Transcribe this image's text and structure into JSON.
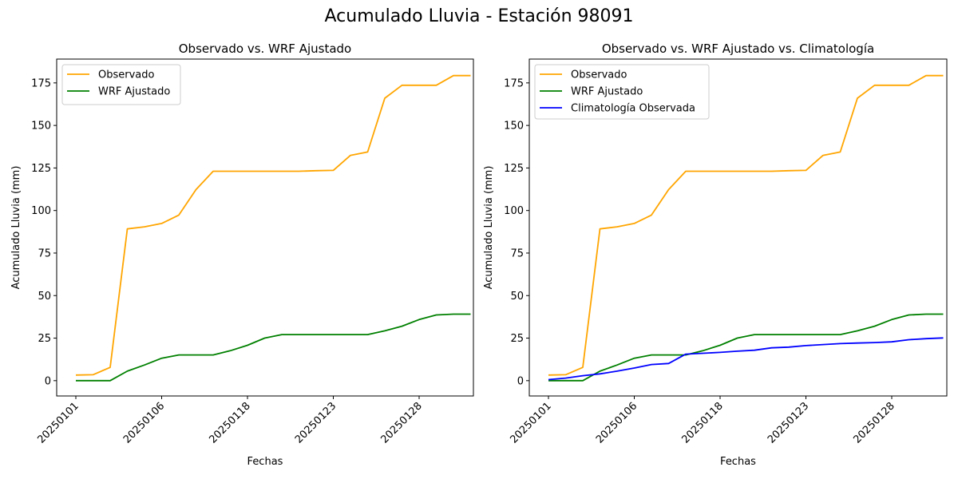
{
  "figure": {
    "title": "Acumulado Lluvia - Estación 98091"
  },
  "colors": {
    "observado": "#FFA500",
    "wrf": "#008000",
    "climatologia": "#0000FF",
    "axes": "#000000"
  },
  "chart_data": [
    {
      "type": "line",
      "title": "Observado vs. WRF Ajustado",
      "xlabel": "Fechas",
      "ylabel": "Acumulado Lluvia (mm)",
      "ylim": [
        -9,
        189
      ],
      "yticks": [
        0,
        25,
        50,
        75,
        100,
        125,
        150,
        175
      ],
      "x_tick_labels": [
        "20250101",
        "20250106",
        "20250118",
        "20250123",
        "20250128"
      ],
      "grid": false,
      "legend_position": "top-left",
      "series": [
        {
          "name": "Observado",
          "color": "#FFA500",
          "values": [
            3.3,
            3.5,
            7.8,
            89.2,
            90.4,
            92.4,
            97.3,
            112.3,
            123.1,
            123.1,
            123.1,
            123.1,
            123.1,
            123.1,
            123.4,
            123.6,
            132.4,
            134.4,
            166.0,
            173.6,
            173.6,
            173.6,
            179.3,
            179.3
          ]
        },
        {
          "name": "WRF Ajustado",
          "color": "#008000",
          "values": [
            0,
            0,
            0,
            5.6,
            9.2,
            13.2,
            15.1,
            15.1,
            15.1,
            17.6,
            20.8,
            25.0,
            27.1,
            27.1,
            27.1,
            27.1,
            27.1,
            27.1,
            29.3,
            32.0,
            35.9,
            38.6,
            39.1,
            39.1
          ]
        }
      ]
    },
    {
      "type": "line",
      "title": "Observado vs. WRF Ajustado vs. Climatología",
      "xlabel": "Fechas",
      "ylabel": "Acumulado Lluvia (mm)",
      "ylim": [
        -9,
        189
      ],
      "yticks": [
        0,
        25,
        50,
        75,
        100,
        125,
        150,
        175
      ],
      "x_tick_labels": [
        "20250101",
        "20250106",
        "20250118",
        "20250123",
        "20250128"
      ],
      "grid": false,
      "legend_position": "top-left",
      "series": [
        {
          "name": "Observado",
          "color": "#FFA500",
          "values": [
            3.3,
            3.5,
            7.8,
            89.2,
            90.4,
            92.4,
            97.3,
            112.3,
            123.1,
            123.1,
            123.1,
            123.1,
            123.1,
            123.1,
            123.4,
            123.6,
            132.4,
            134.4,
            166.0,
            173.6,
            173.6,
            173.6,
            179.3,
            179.3
          ]
        },
        {
          "name": "WRF Ajustado",
          "color": "#008000",
          "values": [
            0,
            0,
            0,
            5.6,
            9.2,
            13.2,
            15.1,
            15.1,
            15.1,
            17.6,
            20.8,
            25.0,
            27.1,
            27.1,
            27.1,
            27.1,
            27.1,
            27.1,
            29.3,
            32.0,
            35.9,
            38.6,
            39.1,
            39.1
          ]
        },
        {
          "name": "Climatología Observada",
          "color": "#0000FF",
          "values": [
            0.6,
            1.5,
            2.9,
            4.0,
            5.6,
            7.4,
            9.5,
            10.1,
            15.6,
            16.1,
            16.6,
            17.3,
            17.9,
            19.3,
            19.7,
            20.6,
            21.2,
            21.8,
            22.1,
            22.4,
            22.8,
            24.1,
            24.7,
            25.1
          ]
        }
      ]
    }
  ]
}
